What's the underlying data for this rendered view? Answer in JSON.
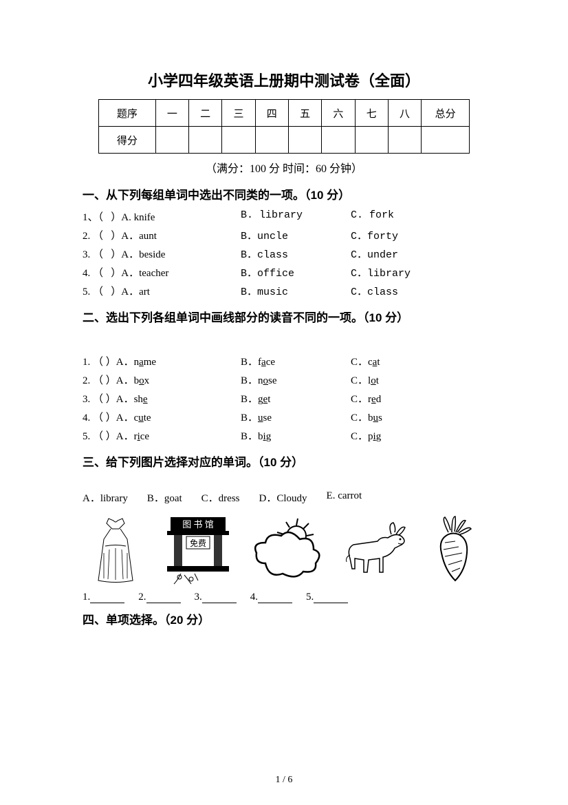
{
  "title": "小学四年级英语上册期中测试卷（全面）",
  "score_table": {
    "row1_label": "题序",
    "row2_label": "得分",
    "cols": [
      "一",
      "二",
      "三",
      "四",
      "五",
      "六",
      "七",
      "八"
    ],
    "total": "总分"
  },
  "meta": "（满分：100 分    时间：60 分钟）",
  "section1": {
    "heading": "一、从下列每组单词中选出不同类的一项。（10 分）",
    "items": [
      {
        "n": "1、（   ）A. knife",
        "b": "B. library",
        "c": "C. fork"
      },
      {
        "n": "2. （   ）A．aunt",
        "b": "B．uncle",
        "c": "C．forty"
      },
      {
        "n": "3. （   ）A．beside",
        "b": "B．class",
        "c": "C．under"
      },
      {
        "n": "4. （   ）A．teacher",
        "b": "B．office",
        "c": "C．library"
      },
      {
        "n": "5. （   ）A．art",
        "b": "B．music",
        "c": "C．class"
      }
    ]
  },
  "section2": {
    "heading": "二、选出下列各组单词中画线部分的读音不同的一项。（10 分）",
    "items": [
      {
        "n": "1. （   ）A．n",
        "au": "a",
        "a2": "me",
        "b": "B．f",
        "bu": "a",
        "b2": "ce",
        "c": "C．c",
        "cu": "a",
        "c2": "t"
      },
      {
        "n": "2. （   ）A．b",
        "au": "o",
        "a2": "x",
        "b": "B．n",
        "bu": "o",
        "b2": "se",
        "c": "C．l",
        "cu": "o",
        "c2": "t"
      },
      {
        "n": "3. （   ）A．sh",
        "au": "e",
        "a2": "",
        "b": " B．g",
        "bu": "e",
        "b2": "t",
        "c": "C．r",
        "cu": "e",
        "c2": "d"
      },
      {
        "n": "4. （   ）A．c",
        "au": "u",
        "a2": "te",
        "b": "B．",
        "bu": "u",
        "b2": "se",
        "c": "C．b",
        "cu": "u",
        "c2": "s"
      },
      {
        "n": "5. （   ）A．r",
        "au": "i",
        "a2": "ce",
        "b": "B．b",
        "bu": "i",
        "b2": "g",
        "c": "C．p",
        "cu": "i",
        "c2": "g"
      }
    ]
  },
  "section3": {
    "heading": "三、给下列图片选择对应的单词。（10 分）",
    "bank": [
      "A．library",
      "B．goat",
      "C．dress",
      "D．Cloudy",
      "E. carrot"
    ],
    "lib_label": "图 书 馆",
    "lib_free": "免费",
    "blanks": [
      "1.",
      "2.",
      "3.",
      "4.",
      "5."
    ]
  },
  "section4": {
    "heading": "四、单项选择。（20 分）"
  },
  "footer": "1 / 6"
}
